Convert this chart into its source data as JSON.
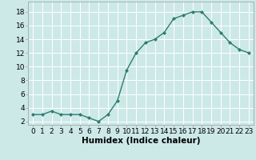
{
  "x": [
    0,
    1,
    2,
    3,
    4,
    5,
    6,
    7,
    8,
    9,
    10,
    11,
    12,
    13,
    14,
    15,
    16,
    17,
    18,
    19,
    20,
    21,
    22,
    23
  ],
  "y": [
    3,
    3,
    3.5,
    3,
    3,
    3,
    2.5,
    2,
    3,
    5,
    9.5,
    12,
    13.5,
    14,
    15,
    17,
    17.5,
    18,
    18,
    16.5,
    15,
    13.5,
    12.5,
    12
  ],
  "line_color": "#2d7d6e",
  "marker": "D",
  "marker_size": 2.0,
  "background_color": "#cce9e8",
  "grid_color": "#ffffff",
  "xlabel": "Humidex (Indice chaleur)",
  "ylim": [
    1.5,
    19.5
  ],
  "xlim": [
    -0.5,
    23.5
  ],
  "yticks": [
    2,
    4,
    6,
    8,
    10,
    12,
    14,
    16,
    18
  ],
  "xticks": [
    0,
    1,
    2,
    3,
    4,
    5,
    6,
    7,
    8,
    9,
    10,
    11,
    12,
    13,
    14,
    15,
    16,
    17,
    18,
    19,
    20,
    21,
    22,
    23
  ],
  "tick_label_fontsize": 6.5,
  "xlabel_fontsize": 7.5
}
